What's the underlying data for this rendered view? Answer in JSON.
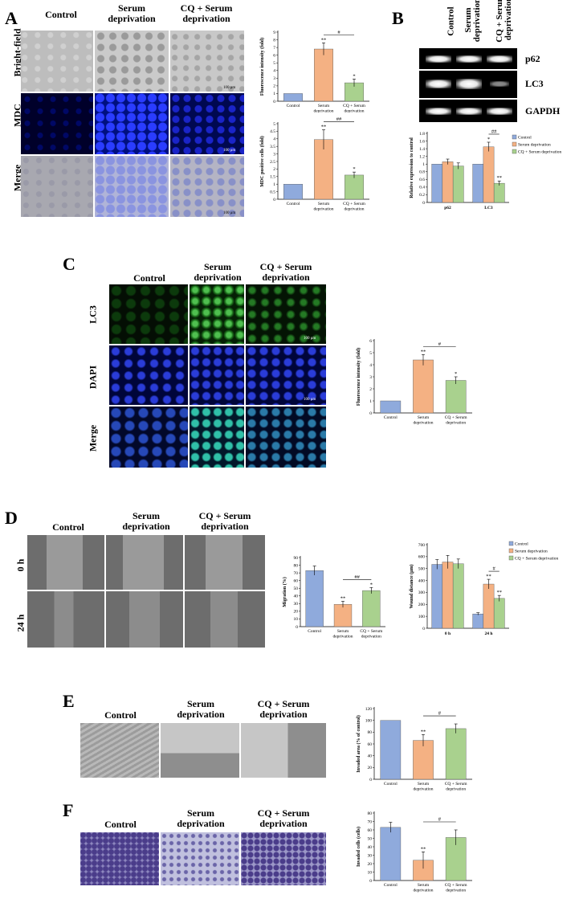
{
  "colors": {
    "control": "#8faadc",
    "serum": "#f4b183",
    "cq": "#a9d18e"
  },
  "panelA": {
    "letter": "A",
    "headers": [
      "Control",
      "Serum\ndeprivation",
      "CQ + Serum\ndeprivation"
    ],
    "rows": [
      "Bright-field",
      "MDC",
      "Merge"
    ],
    "scale_bar": "100 μm"
  },
  "panelB": {
    "letter": "B",
    "headers": [
      "Control",
      "Serum\ndeprivation",
      "CQ + Serum\ndeprivation"
    ],
    "bands": [
      "p62",
      "LC3",
      "GAPDH"
    ]
  },
  "panelC": {
    "letter": "C",
    "headers": [
      "Control",
      "Serum\ndeprivation",
      "CQ + Serum\ndeprivation"
    ],
    "rows": [
      "LC3",
      "DAPI",
      "Merge"
    ],
    "scale_bar": "100 μm"
  },
  "panelD": {
    "letter": "D",
    "headers": [
      "Control",
      "Serum\ndeprivation",
      "CQ + Serum\ndeprivation"
    ],
    "rows": [
      "0 h",
      "24 h"
    ]
  },
  "panelE": {
    "letter": "E",
    "headers": [
      "Control",
      "Serum\ndeprivation",
      "CQ + Serum\ndeprivation"
    ]
  },
  "panelF": {
    "letter": "F",
    "headers": [
      "Control",
      "Serum\ndeprivation",
      "CQ + Serum\ndeprivation"
    ]
  },
  "chart_data": [
    {
      "id": "A-top",
      "type": "bar",
      "ylabel": "Fluorescence intensity (fold)",
      "categories": [
        "Control",
        "Serum\ndeprivation",
        "CQ + Serum\ndeprivation"
      ],
      "values": [
        1,
        6.8,
        2.4
      ],
      "errors": [
        0,
        0.8,
        0.5
      ],
      "ylim": [
        0,
        9
      ],
      "ticks": [
        0,
        1,
        2,
        3,
        4,
        5,
        6,
        7,
        8,
        9
      ],
      "stars": [
        "",
        "**",
        "*"
      ],
      "bracket": "#"
    },
    {
      "id": "A-bottom",
      "type": "bar",
      "ylabel": "MDC positive cells (fold)",
      "categories": [
        "Control",
        "Serum\ndeprivation",
        "CQ + Serum\ndeprivation"
      ],
      "values": [
        1,
        3.95,
        1.6
      ],
      "errors": [
        0,
        0.65,
        0.2
      ],
      "ylim": [
        0,
        5
      ],
      "ticks": [
        0,
        0.5,
        1,
        1.5,
        2,
        2.5,
        3,
        3.5,
        4,
        4.5,
        5
      ],
      "stars": [
        "",
        "**",
        "*"
      ],
      "bracket": "##"
    },
    {
      "id": "B-chart",
      "type": "bar",
      "ylabel": "Relative expression to control",
      "categories": [
        "p62",
        "LC3"
      ],
      "series": [
        {
          "name": "Control",
          "values": [
            1,
            1
          ],
          "errors": [
            0,
            0
          ]
        },
        {
          "name": "Serum deprivation",
          "values": [
            1.06,
            1.45
          ],
          "errors": [
            0.07,
            0.12
          ]
        },
        {
          "name": "CQ + Serum deprivation",
          "values": [
            0.95,
            0.5
          ],
          "errors": [
            0.08,
            0.06
          ]
        }
      ],
      "ylim": [
        0,
        1.8
      ],
      "ticks": [
        0,
        0.2,
        0.4,
        0.6,
        0.8,
        1,
        1.2,
        1.4,
        1.6,
        1.8
      ],
      "stars": [
        [
          "",
          "",
          ""
        ],
        [
          "",
          "*",
          "**"
        ]
      ],
      "bracket": "##"
    },
    {
      "id": "C-chart",
      "type": "bar",
      "ylabel": "Fluorescence intensity (fold)",
      "categories": [
        "Control",
        "Serum\ndeprivation",
        "CQ + Serum\ndeprivation"
      ],
      "values": [
        1,
        4.4,
        2.7
      ],
      "errors": [
        0,
        0.45,
        0.3
      ],
      "ylim": [
        0,
        6
      ],
      "ticks": [
        0,
        1,
        2,
        3,
        4,
        5,
        6
      ],
      "stars": [
        "",
        "**",
        "*"
      ],
      "bracket": "#"
    },
    {
      "id": "D-mig",
      "type": "bar",
      "ylabel": "Migration (%)",
      "categories": [
        "Control",
        "Serum\ndeprivation",
        "CQ + Serum\ndeprivation"
      ],
      "values": [
        73,
        29,
        47
      ],
      "errors": [
        6,
        4,
        4
      ],
      "ylim": [
        0,
        90
      ],
      "ticks": [
        0,
        10,
        20,
        30,
        40,
        50,
        60,
        70,
        80,
        90
      ],
      "stars": [
        "",
        "**",
        "*"
      ],
      "bracket": "##"
    },
    {
      "id": "D-wound",
      "type": "bar",
      "ylabel": "Wound distance (μm)",
      "categories": [
        "0 h",
        "24 h"
      ],
      "series": [
        {
          "name": "Control",
          "values": [
            535,
            120
          ],
          "errors": [
            40,
            10
          ]
        },
        {
          "name": "Serum deprivation",
          "values": [
            555,
            370
          ],
          "errors": [
            55,
            40
          ]
        },
        {
          "name": "CQ + Serum deprivation",
          "values": [
            540,
            250
          ],
          "errors": [
            40,
            25
          ]
        }
      ],
      "ylim": [
        0,
        700
      ],
      "ticks": [
        0,
        100,
        200,
        300,
        400,
        500,
        600,
        700
      ],
      "stars": [
        [
          "",
          "",
          ""
        ],
        [
          "",
          "**",
          "**"
        ]
      ],
      "bracket": "#"
    },
    {
      "id": "E-chart",
      "type": "bar",
      "ylabel": "Invaded area (% of control)",
      "categories": [
        "Control",
        "Serum\ndeprivation",
        "CQ + Serum\ndeprivation"
      ],
      "values": [
        100,
        66,
        86
      ],
      "errors": [
        0,
        10,
        8
      ],
      "ylim": [
        0,
        120
      ],
      "ticks": [
        0,
        20,
        40,
        60,
        80,
        100,
        120
      ],
      "stars": [
        "",
        "**",
        ""
      ],
      "bracket": "#"
    },
    {
      "id": "F-chart",
      "type": "bar",
      "ylabel": "Invaded cells (cells)",
      "categories": [
        "Control",
        "Serum\ndeprivation",
        "CQ + Serum\ndeprivation"
      ],
      "values": [
        63,
        24,
        51
      ],
      "errors": [
        6,
        10,
        9
      ],
      "ylim": [
        0,
        80
      ],
      "ticks": [
        0,
        10,
        20,
        30,
        40,
        50,
        60,
        70,
        80
      ],
      "stars": [
        "",
        "**",
        ""
      ],
      "bracket": "#"
    }
  ]
}
